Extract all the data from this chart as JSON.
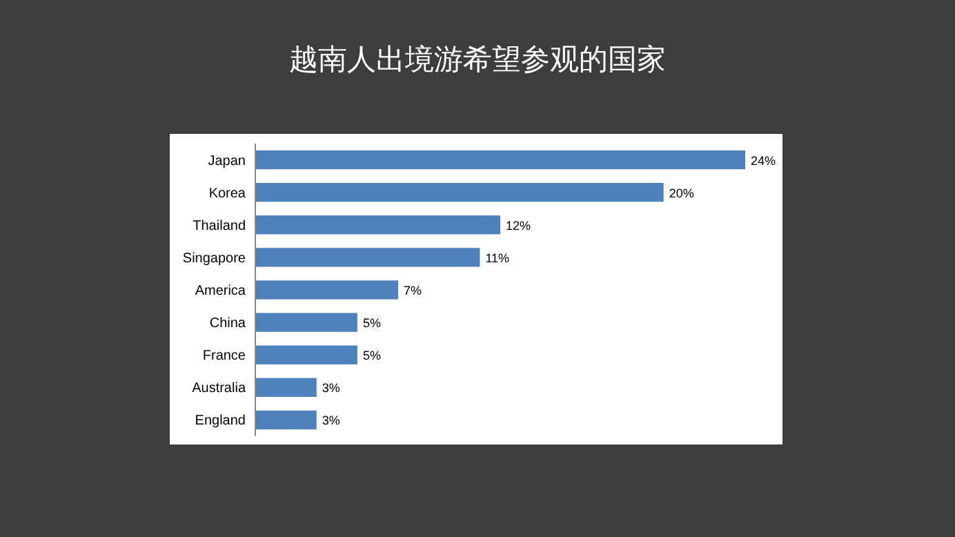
{
  "chart_data": {
    "type": "bar",
    "orientation": "horizontal",
    "title": "越南人出境游希望参观的国家",
    "categories": [
      "Japan",
      "Korea",
      "Thailand",
      "Singapore",
      "America",
      "China",
      "France",
      "Australia",
      "England"
    ],
    "values": [
      24,
      20,
      12,
      11,
      7,
      5,
      5,
      3,
      3
    ],
    "value_labels": [
      "24%",
      "20%",
      "12%",
      "11%",
      "7%",
      "5%",
      "5%",
      "3%",
      "3%"
    ],
    "color": "#4f81bd"
  }
}
